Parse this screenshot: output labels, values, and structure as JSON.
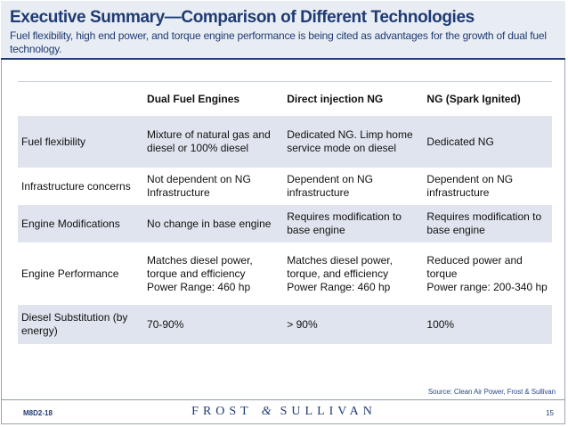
{
  "header": {
    "title": "Executive Summary—Comparison of Different Technologies",
    "subtitle": "Fuel flexibility, high end power, and torque engine performance is being cited as advantages for the growth of dual fuel technology."
  },
  "table": {
    "headers": [
      "",
      "Dual Fuel Engines",
      "Direct injection NG",
      "NG (Spark Ignited)"
    ],
    "rows": [
      [
        "Fuel flexibility",
        "Mixture of natural gas and diesel or 100% diesel",
        "Dedicated NG. Limp home service mode on diesel",
        "Dedicated NG"
      ],
      [
        "Infrastructure concerns",
        "Not dependent on NG Infrastructure",
        "Dependent on NG infrastructure",
        "Dependent on NG infrastructure"
      ],
      [
        "Engine Modifications",
        "No change in base engine",
        "Requires modification to base engine",
        "Requires modification to base engine"
      ],
      [
        "Engine Performance",
        "Matches diesel power, torque and efficiency\nPower Range: 460 hp",
        "Matches diesel power, torque, and efficiency\nPower Range: 460 hp",
        "Reduced power and torque\nPower range: 200-340 hp"
      ],
      [
        "Diesel Substitution (by energy)",
        "70-90%",
        "> 90%",
        "100%"
      ]
    ]
  },
  "source": "Source: Clean Air Power, Frost & Sullivan",
  "footer": {
    "code": "M8D2-18",
    "logo_left": "FROST",
    "logo_amp": "&",
    "logo_right": "SULLIVAN",
    "page": "15"
  },
  "colors": {
    "accent": "#1f3b73",
    "row_shade": "#dfe4ee",
    "header_bg": "#e8ecf3"
  }
}
